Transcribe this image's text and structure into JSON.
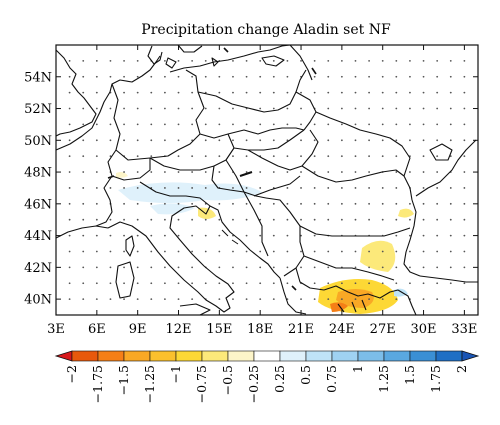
{
  "title": "Precipitation change Aladin set NF",
  "map": {
    "lon_range": [
      3,
      34
    ],
    "lat_range": [
      39,
      56
    ],
    "lat_ticks": [
      {
        "value": 54,
        "label": "54N"
      },
      {
        "value": 52,
        "label": "52N"
      },
      {
        "value": 50,
        "label": "50N"
      },
      {
        "value": 48,
        "label": "48N"
      },
      {
        "value": 46,
        "label": "46N"
      },
      {
        "value": 44,
        "label": "44N"
      },
      {
        "value": 42,
        "label": "42N"
      },
      {
        "value": 40,
        "label": "40N"
      }
    ],
    "lon_ticks": [
      {
        "value": 3,
        "label": "3E"
      },
      {
        "value": 6,
        "label": "6E"
      },
      {
        "value": 9,
        "label": "9E"
      },
      {
        "value": 12,
        "label": "12E"
      },
      {
        "value": 15,
        "label": "15E"
      },
      {
        "value": 18,
        "label": "18E"
      },
      {
        "value": 21,
        "label": "21E"
      },
      {
        "value": 24,
        "label": "24E"
      },
      {
        "value": 27,
        "label": "27E"
      },
      {
        "value": 30,
        "label": "30E"
      },
      {
        "value": 33,
        "label": "33E"
      }
    ],
    "dot_grid": true
  },
  "colorbar": {
    "orientation": "horizontal",
    "extend": "both",
    "levels": [
      "−2",
      "−1.75",
      "−1.5",
      "−1.25",
      "−1",
      "−0.75",
      "−0.5",
      "−0.25",
      "0.25",
      "0.5",
      "0.75",
      "1",
      "1.25",
      "1.5",
      "1.75",
      "2"
    ],
    "colors": [
      "#d7191c",
      "#e8590c",
      "#f57f17",
      "#f9a825",
      "#fbc02d",
      "#fdd835",
      "#fce97a",
      "#fdf5c9",
      "#ffffff",
      "#dff1fb",
      "#bfe3f7",
      "#9fd2f2",
      "#7cbde9",
      "#5aa8e0",
      "#3a8fd4",
      "#1f6fc4",
      "#1a55b5"
    ]
  }
}
